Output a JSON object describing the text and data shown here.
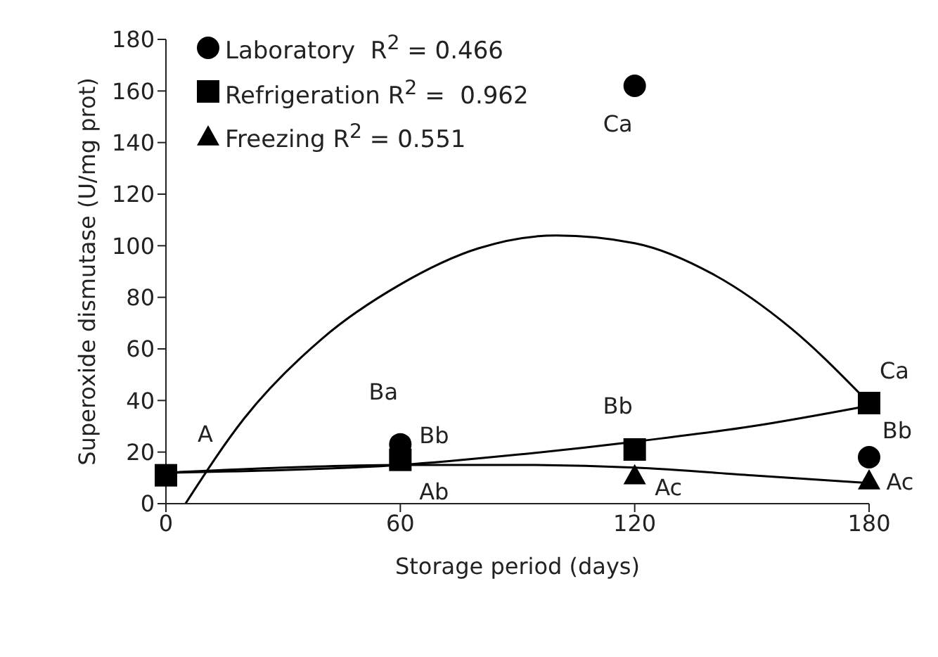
{
  "chart_data": {
    "type": "scatter",
    "xlabel": "Storage period (days)",
    "ylabel": "Superoxide dismutase (U/mg prot)",
    "xlim": [
      0,
      180
    ],
    "xticks": [
      0,
      60,
      120,
      180
    ],
    "ylim": [
      0,
      180
    ],
    "yticks": [
      0,
      20,
      40,
      60,
      80,
      100,
      120,
      140,
      160,
      180
    ],
    "grid": false,
    "legend": "top left",
    "x": [
      0,
      60,
      120,
      180
    ],
    "series": [
      {
        "name": "Laboratory  R$^{2}$ = 0.466",
        "color": "#000000",
        "marker": "circle",
        "values": [
          null,
          23,
          162,
          18
        ]
      },
      {
        "name": "Refrigeration R$^{2}$ =  0.962",
        "color": "#000000",
        "marker": "square",
        "values": [
          11,
          17,
          21,
          39
        ]
      },
      {
        "name": "Freezing R$^{2}$ = 0.551",
        "color": "#000000",
        "marker": "triangle",
        "values": [
          null,
          null,
          11,
          9
        ]
      },
      {
        "type": "line",
        "color": "#000000",
        "x": [
          5,
          20,
          40,
          60,
          80,
          100,
          120,
          140,
          160,
          180
        ],
        "values": [
          0,
          33,
          64,
          85,
          99,
          104,
          101,
          89,
          68,
          39
        ]
      },
      {
        "type": "line",
        "color": "#000000",
        "x": [
          0,
          30,
          60,
          90,
          120,
          150,
          180
        ],
        "values": [
          12,
          13,
          15,
          19,
          24,
          30,
          38
        ]
      },
      {
        "type": "line",
        "color": "#000000",
        "x": [
          0,
          30,
          60,
          90,
          120,
          150,
          180
        ],
        "values": [
          12,
          14,
          15,
          15,
          14,
          11,
          8
        ]
      }
    ],
    "annotations": [
      {
        "text": "A",
        "x": 0,
        "y": 11
      },
      {
        "text": "Ba",
        "x": 60,
        "y": 23
      },
      {
        "text": "Bb",
        "x": 60,
        "y": 17
      },
      {
        "text": "Ab",
        "x": 60,
        "y": 17
      },
      {
        "text": "Ca",
        "x": 120,
        "y": 162
      },
      {
        "text": "Bb",
        "x": 120,
        "y": 21
      },
      {
        "text": "Ac",
        "x": 120,
        "y": 11
      },
      {
        "text": "Ca",
        "x": 180,
        "y": 39
      },
      {
        "text": "Bb",
        "x": 180,
        "y": 18
      },
      {
        "text": "Ac",
        "x": 180,
        "y": 9
      }
    ]
  }
}
